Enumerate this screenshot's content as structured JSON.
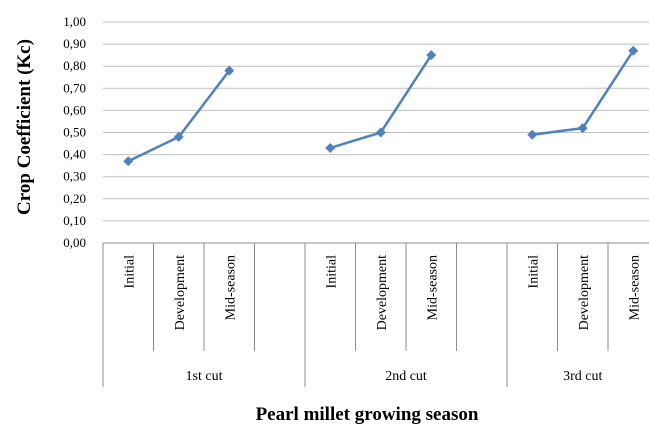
{
  "chart_data": {
    "type": "line",
    "title": "",
    "xlabel": "Pearl millet growing season",
    "ylabel": "Crop Coefficient (Kc)",
    "ylim": [
      0,
      1
    ],
    "y_ticks": [
      "0,00",
      "0,10",
      "0,20",
      "0,30",
      "0,40",
      "0,50",
      "0,60",
      "0,70",
      "0,80",
      "0,90",
      "1,00"
    ],
    "grid": true,
    "legend": "none",
    "series_color": "#4F81BD",
    "groups": [
      {
        "label": "1st  cut",
        "categories": [
          "Initial",
          "Development",
          "Mid-season",
          ""
        ],
        "values": [
          0.37,
          0.48,
          0.78,
          null
        ]
      },
      {
        "label": "2nd cut",
        "categories": [
          "Initial",
          "Development",
          "Mid-season",
          ""
        ],
        "values": [
          0.43,
          0.5,
          0.85,
          null
        ]
      },
      {
        "label": "3rd cut",
        "categories": [
          "Initial",
          "Development",
          "Mid-season"
        ],
        "values": [
          0.49,
          0.52,
          0.87
        ]
      }
    ]
  }
}
